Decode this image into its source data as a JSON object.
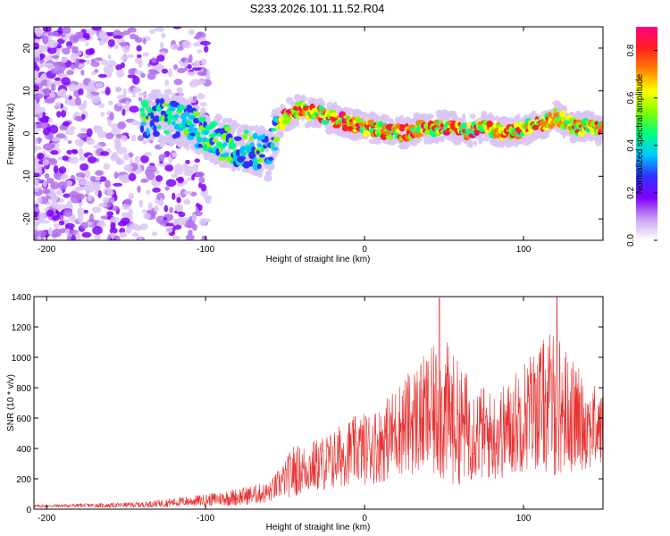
{
  "title": "S233.2026.101.11.52.R04",
  "chart_data": [
    {
      "type": "heatmap",
      "name": "spectrogram",
      "xlabel": "Height of straight line (km)",
      "ylabel": "Frequency (Hz)",
      "xlim": [
        -208,
        150
      ],
      "ylim": [
        -25,
        25
      ],
      "xticks": [
        -200,
        -100,
        0,
        100
      ],
      "yticks": [
        -20,
        -10,
        0,
        10,
        20
      ],
      "ridge_x": [
        -140,
        -130,
        -120,
        -110,
        -100,
        -90,
        -80,
        -70,
        -60,
        -55,
        -50,
        -45,
        -40,
        -35,
        -30,
        -25,
        -20,
        -15,
        -10,
        -5,
        0,
        5,
        10,
        15,
        20,
        25,
        30,
        35,
        40,
        45,
        50,
        55,
        60,
        65,
        70,
        75,
        80,
        85,
        90,
        95,
        100,
        105,
        110,
        115,
        120,
        125,
        130,
        135,
        140,
        145,
        150
      ],
      "ridge_y": [
        3,
        4,
        3,
        2,
        0,
        -2,
        -3,
        -4,
        -5,
        2,
        4,
        5,
        5.5,
        5,
        4.5,
        4,
        3.5,
        3,
        2.5,
        2,
        1.5,
        1,
        1,
        0.5,
        0.5,
        0,
        0.5,
        1,
        1,
        1.5,
        2,
        1.5,
        1,
        0.5,
        1,
        1.5,
        1,
        0.5,
        0,
        0.5,
        1,
        1.5,
        2,
        3,
        4,
        3,
        2,
        1.5,
        1.5,
        1,
        1
      ],
      "colorbar": {
        "label": "Normalized spectral amplitude",
        "range": [
          0.0,
          0.9
        ],
        "ticks": [
          "0.0",
          "0.2",
          "0.4",
          "0.6",
          "0.8"
        ],
        "colors": [
          "#ffffff",
          "#c9a0f0",
          "#8000ff",
          "#3030ff",
          "#00c8ff",
          "#00ff80",
          "#80ff00",
          "#ffff00",
          "#ff8000",
          "#ff2020",
          "#ff0080"
        ]
      }
    },
    {
      "type": "line",
      "name": "snr",
      "xlabel": "Height of straight line (km)",
      "ylabel": "SNR (10 * v/v)",
      "xlim": [
        -208,
        150
      ],
      "ylim": [
        0,
        1400
      ],
      "xticks": [
        -200,
        -100,
        0,
        100
      ],
      "yticks": [
        0,
        200,
        400,
        600,
        800,
        1000,
        1200,
        1400
      ],
      "color": "#e83030",
      "envelope_x": [
        -208,
        -180,
        -160,
        -140,
        -120,
        -100,
        -80,
        -60,
        -50,
        -45,
        -40,
        -30,
        -20,
        -10,
        0,
        10,
        20,
        30,
        40,
        50,
        60,
        70,
        80,
        90,
        100,
        110,
        120,
        130,
        140,
        150
      ],
      "envelope_mean": [
        20,
        25,
        25,
        30,
        45,
        60,
        80,
        110,
        200,
        250,
        260,
        290,
        320,
        380,
        400,
        430,
        520,
        580,
        620,
        640,
        560,
        520,
        480,
        520,
        620,
        680,
        700,
        620,
        560,
        520
      ],
      "envelope_amp": [
        10,
        12,
        15,
        20,
        30,
        40,
        60,
        70,
        120,
        180,
        160,
        180,
        200,
        220,
        240,
        260,
        300,
        360,
        420,
        500,
        400,
        330,
        300,
        320,
        380,
        420,
        500,
        380,
        300,
        250
      ],
      "peaks": [
        {
          "x": 47,
          "y": 1390
        },
        {
          "x": 121,
          "y": 1400
        }
      ]
    }
  ]
}
